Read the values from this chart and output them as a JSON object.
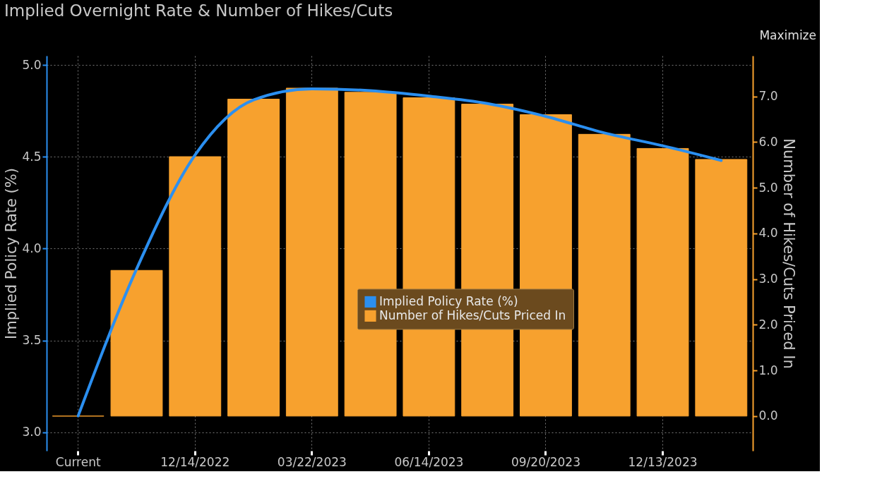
{
  "chart_data": {
    "type": "bar",
    "title": "Implied Overnight Rate & Number of Hikes/Cuts",
    "ylabel": "Implied Policy Rate (%)",
    "y2label": "Number of Hikes/Cuts Priced In",
    "categories": [
      "Current",
      null,
      "12/14/2022",
      null,
      "03/22/2023",
      null,
      "06/14/2023",
      null,
      "09/20/2023",
      null,
      "12/13/2023",
      null
    ],
    "series": [
      {
        "name": "Implied Policy Rate (%)",
        "type": "line",
        "color": "#2b8ff0",
        "values": [
          3.09,
          3.89,
          4.51,
          4.81,
          4.87,
          4.86,
          4.83,
          4.79,
          4.72,
          4.63,
          4.56,
          4.48
        ]
      },
      {
        "name": "Number of Hikes/Cuts Priced In",
        "axis": "y2",
        "color": "#f7a12e",
        "values": [
          0.0,
          3.19,
          5.68,
          6.94,
          7.18,
          7.09,
          6.97,
          6.83,
          6.6,
          6.17,
          5.86,
          5.62
        ]
      }
    ],
    "ylim": [
      2.9,
      5.05
    ],
    "yticks": [
      {
        "value": 3,
        "label": "3.0"
      },
      3.5,
      {
        "value": 4,
        "label": "4.0"
      },
      4.5,
      {
        "value": 5,
        "label": "5.0"
      }
    ],
    "y2lim": [
      -0.76,
      7.89
    ],
    "y2ticks": [
      {
        "value": 0,
        "label": "0.0"
      },
      {
        "value": 1,
        "label": "1.0"
      },
      {
        "value": 2,
        "label": "2.0"
      },
      {
        "value": 3,
        "label": "3.0"
      },
      {
        "value": 4,
        "label": "4.0"
      },
      {
        "value": 5,
        "label": "5.0"
      },
      {
        "value": 6,
        "label": "6.0"
      },
      {
        "value": 7,
        "label": "7.0"
      }
    ],
    "grid": true,
    "legend": "center",
    "annotations": [
      "Maximize"
    ]
  }
}
